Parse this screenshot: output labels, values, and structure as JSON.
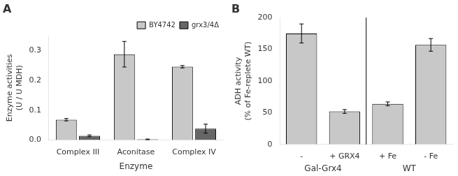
{
  "chart_data": [
    {
      "type": "bar",
      "title": "A",
      "categories": [
        "Complex III",
        "Aconitase",
        "Complex IV"
      ],
      "series": [
        {
          "name": "BY4742",
          "color": "#c8c8c8",
          "values": [
            0.068,
            0.288,
            0.246
          ],
          "errors": [
            0.004,
            0.043,
            0.004
          ]
        },
        {
          "name": "grx3/4Δ",
          "color": "#666666",
          "values": [
            0.014,
            0.002,
            0.038
          ],
          "errors": [
            0.003,
            0.001,
            0.015
          ]
        }
      ],
      "xlabel": "Enzyme",
      "ylabel": "Enzyme activities\n(U / U MDH)",
      "ylim": [
        0,
        0.35
      ],
      "yticks": [
        {
          "value": 0,
          "label": "0.0"
        },
        0.1,
        0.2,
        0.3
      ],
      "grid": false,
      "legend": "upper right"
    },
    {
      "type": "bar",
      "title": "B",
      "categories": [
        "-",
        "+ GRX4",
        "+ Fe",
        "- Fe"
      ],
      "values": [
        175,
        52,
        64,
        157
      ],
      "errors": [
        15,
        3,
        3,
        10
      ],
      "color": "#c8c8c8",
      "ylabel": "ADH activity\n(% of Fe-replete WT)",
      "ylim": [
        0,
        200
      ],
      "yticks": [
        0,
        50,
        100,
        150,
        200
      ],
      "grid": false,
      "annotations": [
        "Gal-Grx4",
        "WT"
      ]
    }
  ]
}
